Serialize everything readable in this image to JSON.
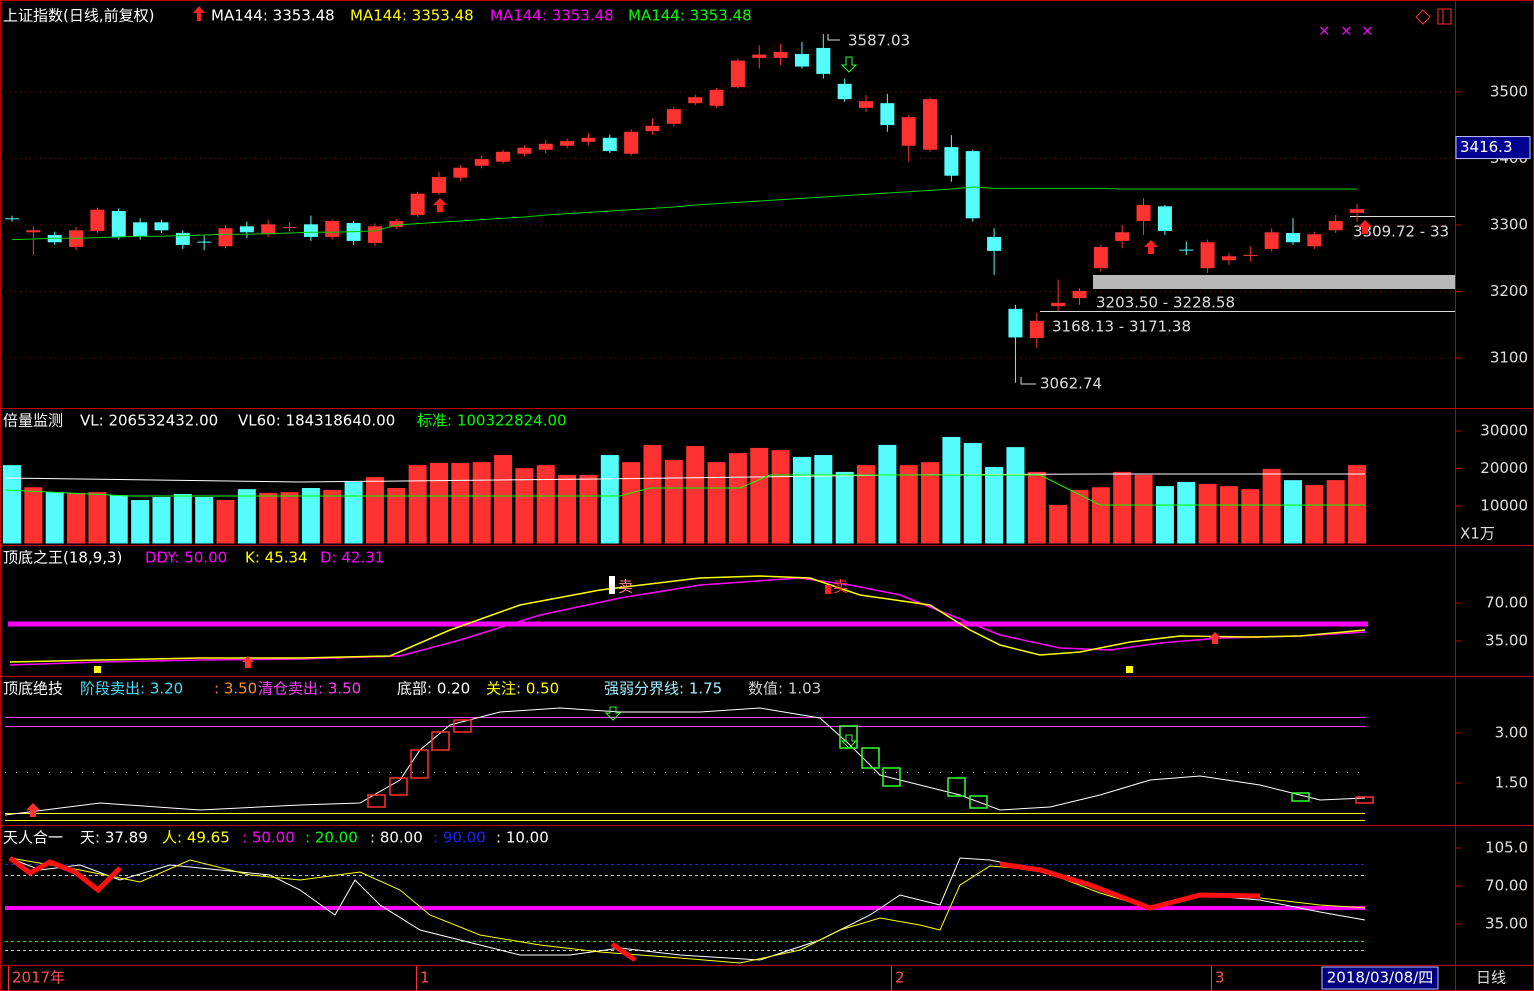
{
  "header": {
    "title": "上证指数(日线,前复权)",
    "ma": [
      "MA144: 3353.48",
      "MA144: 3353.48",
      "MA144: 3353.48",
      "MA144: 3353.48"
    ]
  },
  "price": {
    "ylim": [
      3025,
      3638
    ],
    "yticks": [
      3100,
      3200,
      3300,
      3400,
      3500
    ],
    "cursor": 3416.3,
    "open": [
      3310,
      3289,
      3285,
      3267,
      3291,
      3321,
      3304,
      3304,
      3288,
      3275,
      3268,
      3298,
      3286,
      3296,
      3301,
      3282,
      3303,
      3273,
      3297,
      3315,
      3348,
      3371,
      3389,
      3395,
      3407,
      3413,
      3419,
      3425,
      3431,
      3407,
      3441,
      3452,
      3483,
      3479,
      3507,
      3551,
      3551,
      3557,
      3566,
      3512,
      3476,
      3483,
      3419,
      3413,
      3417,
      3411,
      3282,
      3174,
      3130,
      3178,
      3190,
      3235,
      3276,
      3306,
      3328,
      3263,
      3235,
      3247,
      3254,
      3264,
      3288,
      3268,
      3292,
      3318
    ],
    "high": [
      3314,
      3298,
      3290,
      3297,
      3326,
      3325,
      3310,
      3308,
      3292,
      3284,
      3300,
      3305,
      3308,
      3304,
      3314,
      3308,
      3306,
      3302,
      3309,
      3350,
      3380,
      3390,
      3404,
      3413,
      3420,
      3428,
      3430,
      3438,
      3436,
      3444,
      3460,
      3478,
      3496,
      3506,
      3550,
      3570,
      3572,
      3575,
      3587,
      3520,
      3495,
      3497,
      3465,
      3491,
      3435,
      3413,
      3295,
      3180,
      3168,
      3218,
      3205,
      3270,
      3300,
      3340,
      3330,
      3275,
      3278,
      3258,
      3268,
      3295,
      3310,
      3290,
      3315,
      3332
    ],
    "low": [
      3305,
      3255,
      3270,
      3262,
      3288,
      3278,
      3278,
      3288,
      3264,
      3262,
      3265,
      3280,
      3282,
      3290,
      3276,
      3278,
      3270,
      3268,
      3294,
      3312,
      3345,
      3366,
      3385,
      3392,
      3403,
      3408,
      3415,
      3420,
      3408,
      3404,
      3436,
      3448,
      3480,
      3476,
      3505,
      3535,
      3540,
      3535,
      3520,
      3485,
      3470,
      3440,
      3395,
      3410,
      3365,
      3305,
      3225,
      3063,
      3115,
      3170,
      3180,
      3230,
      3265,
      3285,
      3285,
      3255,
      3228,
      3240,
      3245,
      3260,
      3270,
      3264,
      3288,
      3305
    ],
    "close": [
      3309,
      3292,
      3274,
      3292,
      3323,
      3282,
      3283,
      3292,
      3270,
      3274,
      3295,
      3289,
      3301,
      3297,
      3282,
      3306,
      3276,
      3298,
      3306,
      3347,
      3372,
      3386,
      3399,
      3410,
      3416,
      3422,
      3426,
      3431,
      3411,
      3440,
      3449,
      3474,
      3492,
      3503,
      3547,
      3556,
      3560,
      3538,
      3527,
      3489,
      3486,
      3450,
      3462,
      3489,
      3374,
      3310,
      3261,
      3131,
      3156,
      3183,
      3201,
      3267,
      3289,
      3330,
      3291,
      3262,
      3274,
      3253,
      3255,
      3289,
      3274,
      3286,
      3306,
      3324
    ],
    "ma144": [
      3278,
      3279,
      3280,
      3280,
      3281,
      3282,
      3283,
      3283,
      3284,
      3285,
      3286,
      3286,
      3287,
      3288,
      3289,
      3289,
      3290,
      3291,
      3300,
      3302,
      3304,
      3306,
      3308,
      3310,
      3312,
      3315,
      3317,
      3319,
      3321,
      3323,
      3325,
      3327,
      3330,
      3332,
      3334,
      3336,
      3338,
      3340,
      3342,
      3344,
      3346,
      3348,
      3350,
      3352,
      3354,
      3357,
      3355,
      3355,
      3355,
      3355,
      3355,
      3355,
      3354,
      3354,
      3354,
      3354,
      3354,
      3354,
      3354,
      3354,
      3354,
      3354,
      3354,
      3354
    ],
    "annotations": {
      "high": 3587.03,
      "low": 3062.74,
      "zone1": "3168.13 - 3171.38",
      "zone2": "3203.50 - 3228.58",
      "zone3": "3309.72 - 33"
    }
  },
  "volume": {
    "title": "倍量监测",
    "vl": "VL: 206532432.00",
    "vl60": "VL60: 184318640.00",
    "std": "标准: 100322824.00",
    "unit": "X1万",
    "ylim": [
      0,
      36140
    ],
    "yticks": [
      10000,
      20000,
      30000
    ],
    "values": [
      20900,
      15000,
      13700,
      13500,
      13700,
      12900,
      11600,
      12400,
      13200,
      12400,
      11600,
      14500,
      13500,
      13700,
      14800,
      14300,
      16400,
      17700,
      14800,
      20900,
      21500,
      21500,
      21700,
      23600,
      20100,
      20900,
      18300,
      18300,
      23600,
      21700,
      26300,
      22300,
      26000,
      21700,
      24100,
      25500,
      24900,
      23100,
      23600,
      19100,
      20900,
      26300,
      20900,
      21700,
      28400,
      26800,
      20400,
      25700,
      19100,
      10300,
      14300,
      15000,
      19100,
      18300,
      15300,
      16400,
      15900,
      15300,
      14500,
      19900,
      16900,
      15600,
      16900,
      20900
    ]
  },
  "ind1": {
    "title": "顶底之王(18,9,3)",
    "ddy": "DDY: 50.00",
    "k": "K: 45.34",
    "d": "D: 42.31",
    "ylim": [
      2.8,
      123.4
    ],
    "yticks": [
      {
        "value": 35,
        "label": "35.00"
      },
      {
        "value": 70,
        "label": "70.00"
      }
    ],
    "sell": "卖"
  },
  "ind2": {
    "title": "顶底绝技",
    "stage": "阶段卖出: 3.20",
    "stage2": ": 3.50",
    "clear": "清仓卖出: 3.50",
    "bottom": "底部: 0.20",
    "focus": "关注: 0.50",
    "line": "强弱分界线: 1.75",
    "num": "数值: 1.03",
    "ylim": [
      0.24,
      4.71
    ],
    "yticks": [
      {
        "value": 1.5,
        "label": "1.50"
      },
      {
        "value": 3,
        "label": "3.00"
      }
    ]
  },
  "ind3": {
    "title": "天人合一",
    "tian": "天: 37.89",
    "ren": "人: 49.65",
    "l50": ": 50.00",
    "l20": ": 20.00",
    "l80": ": 80.00",
    "l90": ": 90.00",
    "l10": ": 10.00",
    "ylim": [
      -2.8,
      126.2
    ],
    "yticks": [
      {
        "value": 35,
        "label": "35.00"
      },
      {
        "value": 70,
        "label": "70.00"
      },
      {
        "value": 105,
        "label": "105.0"
      }
    ]
  },
  "xaxis": {
    "labels": [
      "2017年",
      "1",
      "2",
      "3"
    ],
    "date": "2018/03/08/四",
    "period": "日线"
  }
}
